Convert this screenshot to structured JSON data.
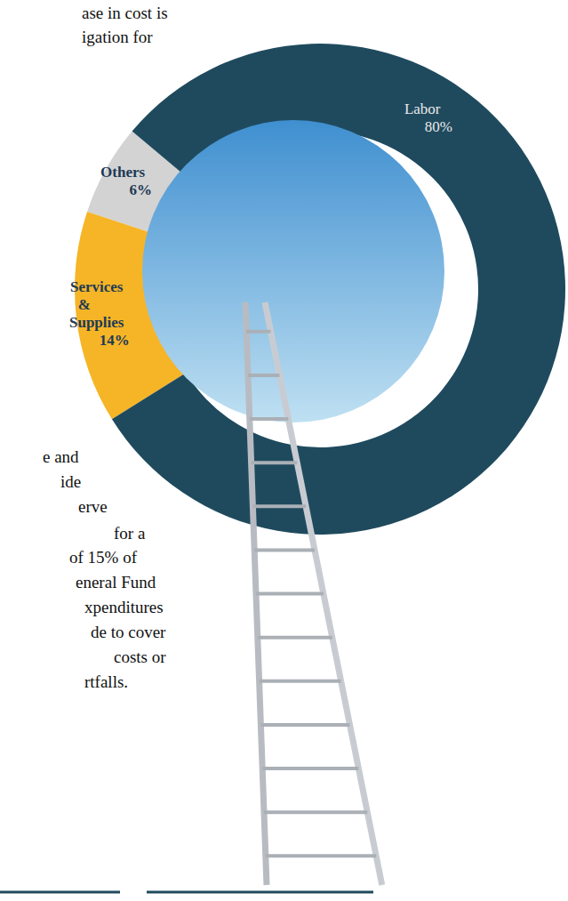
{
  "chart_data": {
    "type": "donut",
    "categories": [
      "Others",
      "Services & Supplies",
      "Labor"
    ],
    "values": [
      6,
      14,
      80
    ],
    "value_labels": [
      "6%",
      "14%",
      "80%"
    ],
    "colors": [
      "#d3d3d3",
      "#f6b526",
      "#1f4a5e"
    ],
    "annotations": [
      "ase in cost is",
      "igation for",
      "e and",
      "ide",
      "erve",
      "for a",
      "of 15% of",
      "eneral Fund",
      "xpenditures",
      "de to cover",
      "costs or",
      "rtfalls."
    ]
  }
}
